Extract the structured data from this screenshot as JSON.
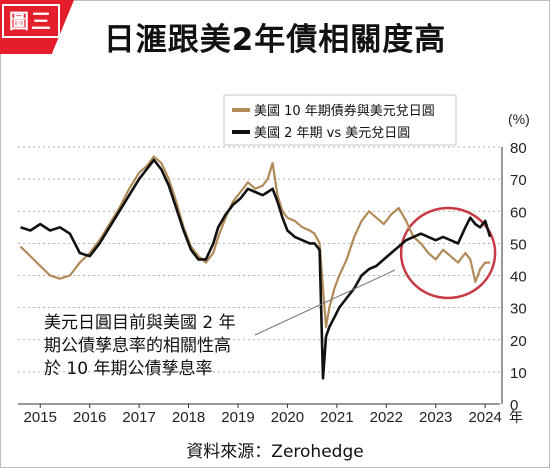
{
  "badge": "圖三",
  "title": "日滙跟美2年債相關度高",
  "source": "資料來源：Zerohedge",
  "colors": {
    "series_10y": "#b08a57",
    "series_2y": "#111111",
    "badge_bg": "#e41e2b",
    "highlight_circle": "#c73a44"
  },
  "chart_data": {
    "type": "line",
    "ylabel": "(%)",
    "x_unit": "年",
    "ylim": [
      0,
      80
    ],
    "y_ticks": [
      0,
      10,
      20,
      30,
      40,
      50,
      60,
      70,
      80
    ],
    "xlim": [
      2014.55,
      2024.3
    ],
    "x_ticks": [
      2015,
      2016,
      2017,
      2018,
      2019,
      2020,
      2021,
      2022,
      2023,
      2024
    ],
    "grid": "dashed horizontal",
    "legend_position": "top-center",
    "annotation": {
      "lines": [
        "美元日圓目前與美國 2 年",
        "期公債孳息率的相關性高",
        "於 10 年期公債孳息率"
      ]
    },
    "highlight_circle_center": [
      2023.25,
      47
    ],
    "series": [
      {
        "name": "美國 10 年期債券與美元兌日圓",
        "points": [
          [
            2014.6,
            49
          ],
          [
            2014.8,
            46
          ],
          [
            2015.0,
            43
          ],
          [
            2015.2,
            40
          ],
          [
            2015.4,
            39
          ],
          [
            2015.6,
            40
          ],
          [
            2015.8,
            44
          ],
          [
            2016.0,
            47
          ],
          [
            2016.2,
            51
          ],
          [
            2016.4,
            56
          ],
          [
            2016.6,
            61
          ],
          [
            2016.8,
            67
          ],
          [
            2017.0,
            72
          ],
          [
            2017.15,
            74
          ],
          [
            2017.3,
            77
          ],
          [
            2017.45,
            75
          ],
          [
            2017.6,
            70
          ],
          [
            2017.75,
            63
          ],
          [
            2017.9,
            55
          ],
          [
            2018.05,
            49
          ],
          [
            2018.2,
            46
          ],
          [
            2018.35,
            44
          ],
          [
            2018.5,
            47
          ],
          [
            2018.6,
            52
          ],
          [
            2018.75,
            58
          ],
          [
            2018.9,
            63
          ],
          [
            2019.05,
            66
          ],
          [
            2019.2,
            69
          ],
          [
            2019.35,
            67
          ],
          [
            2019.5,
            68
          ],
          [
            2019.6,
            70
          ],
          [
            2019.7,
            75
          ],
          [
            2019.8,
            65
          ],
          [
            2019.9,
            60
          ],
          [
            2020.0,
            58
          ],
          [
            2020.15,
            57
          ],
          [
            2020.3,
            55
          ],
          [
            2020.45,
            54
          ],
          [
            2020.55,
            53
          ],
          [
            2020.65,
            50
          ],
          [
            2020.7,
            40
          ],
          [
            2020.78,
            24
          ],
          [
            2020.85,
            30
          ],
          [
            2020.95,
            36
          ],
          [
            2021.05,
            40
          ],
          [
            2021.2,
            45
          ],
          [
            2021.35,
            52
          ],
          [
            2021.5,
            57
          ],
          [
            2021.65,
            60
          ],
          [
            2021.8,
            58
          ],
          [
            2021.95,
            56
          ],
          [
            2022.1,
            59
          ],
          [
            2022.25,
            61
          ],
          [
            2022.4,
            57
          ],
          [
            2022.55,
            52
          ],
          [
            2022.7,
            50
          ],
          [
            2022.85,
            47
          ],
          [
            2023.0,
            45
          ],
          [
            2023.15,
            48
          ],
          [
            2023.3,
            46
          ],
          [
            2023.45,
            44
          ],
          [
            2023.6,
            47
          ],
          [
            2023.7,
            45
          ],
          [
            2023.8,
            38
          ],
          [
            2023.9,
            42
          ],
          [
            2024.0,
            44
          ],
          [
            2024.1,
            44
          ]
        ]
      },
      {
        "name": "美國 2 年期 vs 美元兌日圓",
        "points": [
          [
            2014.6,
            55
          ],
          [
            2014.8,
            54
          ],
          [
            2015.0,
            56
          ],
          [
            2015.2,
            54
          ],
          [
            2015.4,
            55
          ],
          [
            2015.6,
            53
          ],
          [
            2015.8,
            47
          ],
          [
            2016.0,
            46
          ],
          [
            2016.2,
            50
          ],
          [
            2016.4,
            55
          ],
          [
            2016.6,
            60
          ],
          [
            2016.8,
            65
          ],
          [
            2017.0,
            70
          ],
          [
            2017.15,
            73
          ],
          [
            2017.3,
            76
          ],
          [
            2017.45,
            73
          ],
          [
            2017.6,
            68
          ],
          [
            2017.75,
            61
          ],
          [
            2017.9,
            54
          ],
          [
            2018.05,
            48
          ],
          [
            2018.2,
            45
          ],
          [
            2018.35,
            45
          ],
          [
            2018.5,
            50
          ],
          [
            2018.6,
            55
          ],
          [
            2018.75,
            59
          ],
          [
            2018.9,
            62
          ],
          [
            2019.05,
            64
          ],
          [
            2019.2,
            67
          ],
          [
            2019.35,
            66
          ],
          [
            2019.5,
            65
          ],
          [
            2019.6,
            66
          ],
          [
            2019.7,
            67
          ],
          [
            2019.8,
            63
          ],
          [
            2019.9,
            58
          ],
          [
            2020.0,
            54
          ],
          [
            2020.15,
            52
          ],
          [
            2020.3,
            51
          ],
          [
            2020.45,
            50
          ],
          [
            2020.55,
            50
          ],
          [
            2020.65,
            48
          ],
          [
            2020.72,
            8
          ],
          [
            2020.78,
            21
          ],
          [
            2020.85,
            24
          ],
          [
            2020.95,
            27
          ],
          [
            2021.05,
            30
          ],
          [
            2021.2,
            33
          ],
          [
            2021.35,
            36
          ],
          [
            2021.5,
            40
          ],
          [
            2021.65,
            42
          ],
          [
            2021.8,
            43
          ],
          [
            2021.95,
            45
          ],
          [
            2022.1,
            47
          ],
          [
            2022.25,
            49
          ],
          [
            2022.4,
            51
          ],
          [
            2022.55,
            52
          ],
          [
            2022.7,
            53
          ],
          [
            2022.85,
            52
          ],
          [
            2023.0,
            51
          ],
          [
            2023.15,
            52
          ],
          [
            2023.3,
            51
          ],
          [
            2023.45,
            50
          ],
          [
            2023.6,
            55
          ],
          [
            2023.7,
            58
          ],
          [
            2023.8,
            56
          ],
          [
            2023.9,
            55
          ],
          [
            2024.0,
            57
          ],
          [
            2024.1,
            52
          ]
        ]
      }
    ]
  }
}
